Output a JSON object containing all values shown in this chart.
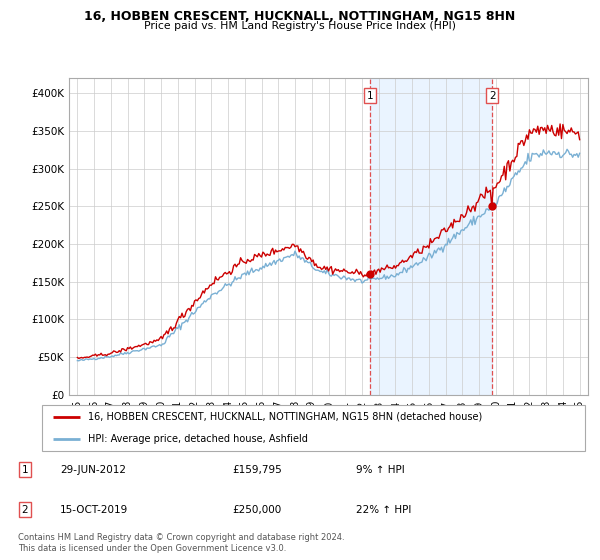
{
  "title": "16, HOBBEN CRESCENT, HUCKNALL, NOTTINGHAM, NG15 8HN",
  "subtitle": "Price paid vs. HM Land Registry's House Price Index (HPI)",
  "background_color": "#ffffff",
  "plot_bg_color": "#ffffff",
  "grid_color": "#cccccc",
  "shaded_region_color": "#ddeeff",
  "ylim": [
    0,
    420000
  ],
  "yticks": [
    0,
    50000,
    100000,
    150000,
    200000,
    250000,
    300000,
    350000,
    400000
  ],
  "ytick_labels": [
    "£0",
    "£50K",
    "£100K",
    "£150K",
    "£200K",
    "£250K",
    "£300K",
    "£350K",
    "£400K"
  ],
  "xlim": [
    1994.5,
    2025.5
  ],
  "xtick_years": [
    1995,
    1996,
    1997,
    1998,
    1999,
    2000,
    2001,
    2002,
    2003,
    2004,
    2005,
    2006,
    2007,
    2008,
    2009,
    2010,
    2011,
    2012,
    2013,
    2014,
    2015,
    2016,
    2017,
    2018,
    2019,
    2020,
    2021,
    2022,
    2023,
    2024,
    2025
  ],
  "legend_line1": "16, HOBBEN CRESCENT, HUCKNALL, NOTTINGHAM, NG15 8HN (detached house)",
  "legend_line2": "HPI: Average price, detached house, Ashfield",
  "footnote": "Contains HM Land Registry data © Crown copyright and database right 2024.\nThis data is licensed under the Open Government Licence v3.0.",
  "table_rows": [
    {
      "num": "1",
      "date": "29-JUN-2012",
      "price": "£159,795",
      "hpi": "9% ↑ HPI"
    },
    {
      "num": "2",
      "date": "15-OCT-2019",
      "price": "£250,000",
      "hpi": "22% ↑ HPI"
    }
  ],
  "line1_color": "#cc0000",
  "line2_color": "#7ab0d4",
  "dashed_vline_color": "#e05050",
  "purchase1_x": 2012.5,
  "purchase1_y": 159795,
  "purchase2_x": 2019.79,
  "purchase2_y": 250000,
  "shade_start": 2012.5,
  "shade_end": 2019.79
}
